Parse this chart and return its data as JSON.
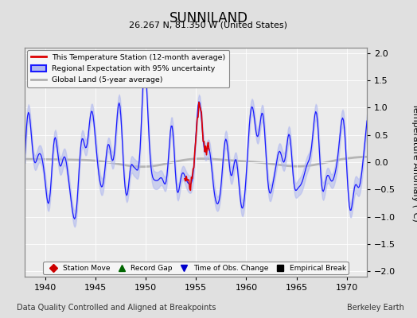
{
  "title": "SUNNILAND",
  "subtitle": "26.267 N, 81.350 W (United States)",
  "xlabel_note": "Data Quality Controlled and Aligned at Breakpoints",
  "xlabel_credit": "Berkeley Earth",
  "ylabel": "Temperature Anomaly (°C)",
  "xlim": [
    1938,
    1972
  ],
  "ylim": [
    -2.1,
    2.1
  ],
  "yticks": [
    -2,
    -1.5,
    -1,
    -0.5,
    0,
    0.5,
    1,
    1.5,
    2
  ],
  "xticks": [
    1940,
    1945,
    1950,
    1955,
    1960,
    1965,
    1970
  ],
  "bg_color": "#e0e0e0",
  "plot_bg_color": "#ebebeb",
  "grid_color": "#ffffff",
  "regional_line_color": "#1a1aff",
  "regional_fill_color": "#b0b8f0",
  "station_line_color": "#dd0000",
  "global_line_color": "#b0b0b0",
  "legend1_labels": [
    "This Temperature Station (12-month average)",
    "Regional Expectation with 95% uncertainty",
    "Global Land (5-year average)"
  ],
  "legend2_labels": [
    "Station Move",
    "Record Gap",
    "Time of Obs. Change",
    "Empirical Break"
  ],
  "legend2_colors": [
    "#cc0000",
    "#006600",
    "#0000cc",
    "#000000"
  ],
  "legend2_markers": [
    "D",
    "^",
    "v",
    "s"
  ]
}
